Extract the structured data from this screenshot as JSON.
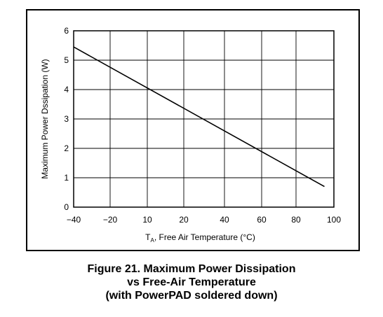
{
  "chart_data": {
    "type": "line",
    "xlabel_main": "T",
    "xlabel_sub": "A",
    "xlabel_rest": ", Free Air Temperature (°C)",
    "ylabel": "Maximum Power Dssipation (W)",
    "xlim": [
      -40,
      100
    ],
    "ylim": [
      0,
      6
    ],
    "x_ticks": [
      -40,
      -20,
      10,
      20,
      40,
      60,
      80,
      100
    ],
    "x_tick_labels": [
      "−40",
      "−20",
      "10",
      "20",
      "40",
      "60",
      "80",
      "100"
    ],
    "y_ticks": [
      0,
      1,
      2,
      3,
      4,
      5,
      6
    ],
    "y_tick_labels": [
      "0",
      "1",
      "2",
      "3",
      "4",
      "5",
      "6"
    ],
    "grid": true,
    "series": [
      {
        "x": [
          -40,
          95
        ],
        "y": [
          5.45,
          0.7
        ]
      }
    ]
  },
  "caption": {
    "line1": "Figure 21.  Maximum Power Dissipation",
    "line2": "vs Free-Air Temperature",
    "line3": "(with PowerPAD soldered down)"
  },
  "colors": {
    "line": "#000000",
    "grid": "#000000",
    "background": "#ffffff"
  }
}
